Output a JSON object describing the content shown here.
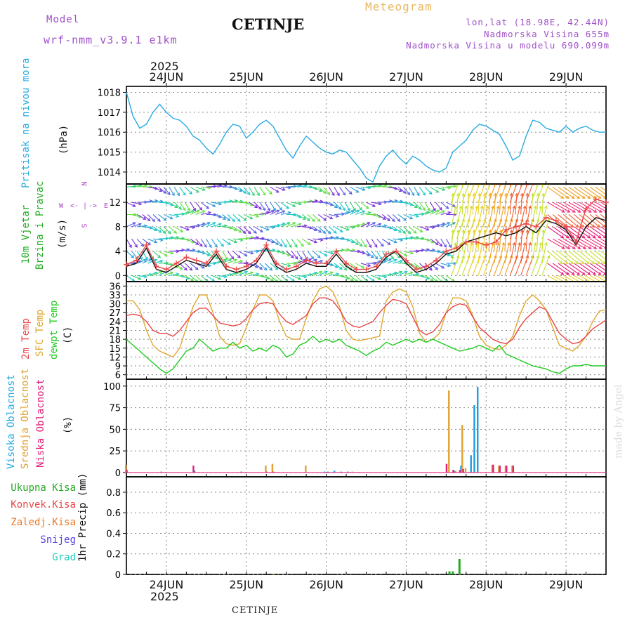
{
  "header": {
    "model_label": "Model",
    "model_name": "wrf-nmm_v3.9.1 e1km",
    "title": "CETINJE",
    "meteogram": "Meteogram",
    "lonlat": "lon,lat (18.98E, 42.44N)",
    "altitude": "Nadmorska Visina 655m",
    "altitude_model": "Nadmorska Visina u modelu 690.099m",
    "footer_station": "CETINJE",
    "watermark": "made by Angel"
  },
  "colors": {
    "pressure": "#29abe2",
    "temp2m": "#e84848",
    "sfc_temp": "#e0a830",
    "dewpt": "#22cc22",
    "cloud_high": "#1e9be0",
    "cloud_mid": "#e0a030",
    "cloud_low": "#e0207a",
    "rain_total": "#22aa22",
    "rain_conv": "#e84848",
    "freezing": "#ee7722",
    "snow": "#5544dd",
    "hail": "#22ccbb",
    "wind_label": "#22aa22",
    "wind_compass": "#b048c8",
    "header_violet": "#a050c8",
    "header_gold": "#e8b860"
  },
  "time_axis": {
    "year": "2025",
    "days": [
      "24JUN",
      "25JUN",
      "26JUN",
      "27JUN",
      "28JUN",
      "29JUN"
    ],
    "start_hour": 12,
    "total_hours": 144
  },
  "panels": {
    "pressure": {
      "label": "Pritisak na nivou mora",
      "unit": "(hPa)"
    },
    "wind": {
      "label1": "10m Vjetar",
      "label2": "Brzina i Pravac",
      "unit": "(m/s)",
      "compass_n": "N",
      "compass_w": "W",
      "compass_e": "E",
      "compass_s": "S",
      "arrow_left": "<-",
      "arrow_right": "->"
    },
    "temp": {
      "label1": "2m Temp",
      "label2": "SFC Temp",
      "label3": "dewpt Temp",
      "unit": "(C)"
    },
    "cloud": {
      "label1": "Visoka Oblacnost",
      "label2": "Srednja Oblacnost",
      "label3": "Niska Oblacnost",
      "unit": "(%)"
    },
    "precip": {
      "unit": "1hr Precip (mm)",
      "legend": [
        "Ukupna Kisa",
        "Konvek.Kisa",
        "Zaledj.Kisa",
        "Snijeg",
        "Grad"
      ]
    }
  },
  "chart_data": [
    {
      "type": "line",
      "name": "pressure",
      "ylim": [
        1013.4,
        1018.3
      ],
      "yticks": [
        1014,
        1015,
        1016,
        1017,
        1018
      ],
      "x_hours": [
        0,
        2,
        4,
        6,
        8,
        10,
        12,
        14,
        16,
        18,
        20,
        22,
        24,
        26,
        28,
        30,
        32,
        34,
        36,
        38,
        40,
        42,
        44,
        46,
        48,
        50,
        52,
        54,
        56,
        58,
        60,
        62,
        64,
        66,
        68,
        70,
        72,
        74,
        76,
        78,
        80,
        82,
        84,
        86,
        88,
        90,
        92,
        94,
        96,
        98,
        100,
        102,
        104,
        106,
        108,
        110,
        112,
        114,
        116,
        118,
        120,
        122,
        124,
        126,
        128,
        130,
        132,
        134,
        136,
        138,
        140,
        142,
        144
      ],
      "series": [
        {
          "values": [
            1018.0,
            1016.8,
            1016.2,
            1016.4,
            1017.0,
            1017.4,
            1017.0,
            1016.7,
            1016.6,
            1016.3,
            1015.8,
            1015.6,
            1015.2,
            1014.9,
            1015.4,
            1016.0,
            1016.4,
            1016.3,
            1015.7,
            1016.0,
            1016.4,
            1016.6,
            1016.3,
            1015.7,
            1015.1,
            1014.7,
            1015.3,
            1015.8,
            1015.5,
            1015.2,
            1015.0,
            1014.9,
            1015.1,
            1015.0,
            1014.6,
            1014.2,
            1013.7,
            1013.5,
            1014.3,
            1014.8,
            1015.1,
            1014.7,
            1014.4,
            1014.8,
            1014.6,
            1014.3,
            1014.1,
            1014.0,
            1014.2,
            1015.0,
            1015.3,
            1015.6,
            1016.1,
            1016.4,
            1016.3,
            1016.1,
            1015.9,
            1015.3,
            1014.6,
            1014.8,
            1015.8,
            1016.6,
            1016.5,
            1016.2,
            1016.1,
            1016.0,
            1016.3,
            1016.0,
            1016.2,
            1016.3,
            1016.1,
            1016.0,
            1016.0
          ]
        }
      ]
    },
    {
      "type": "line",
      "name": "wind",
      "ylim": [
        -1,
        15
      ],
      "yticks": [
        0,
        4,
        8,
        12
      ],
      "x_hours": [
        0,
        3,
        6,
        9,
        12,
        15,
        18,
        21,
        24,
        27,
        30,
        33,
        36,
        39,
        42,
        45,
        48,
        51,
        54,
        57,
        60,
        63,
        66,
        69,
        72,
        75,
        78,
        81,
        84,
        87,
        90,
        93,
        96,
        99,
        102,
        105,
        108,
        111,
        114,
        117,
        120,
        123,
        126,
        129,
        132,
        135,
        138,
        141,
        144
      ],
      "series": [
        {
          "name": "speed",
          "values": [
            1.5,
            2.0,
            4.5,
            1.0,
            0.5,
            1.5,
            2.5,
            2.0,
            1.5,
            3.5,
            1.0,
            0.5,
            1.0,
            2.0,
            4.5,
            1.5,
            0.5,
            1.0,
            2.0,
            1.5,
            1.5,
            3.5,
            1.5,
            0.5,
            0.5,
            1.0,
            3.0,
            4.0,
            2.0,
            0.5,
            1.0,
            2.0,
            3.5,
            4.0,
            5.5,
            6.0,
            6.5,
            7.0,
            6.5,
            7.0,
            8.0,
            7.0,
            9.0,
            8.5,
            7.5,
            5.0,
            8.0,
            9.5,
            9.0
          ]
        },
        {
          "name": "gust",
          "values": [
            1.8,
            2.5,
            5.0,
            1.5,
            1.0,
            2.0,
            3.0,
            2.5,
            2.0,
            4.0,
            1.5,
            1.0,
            1.5,
            2.5,
            5.0,
            2.0,
            1.0,
            1.5,
            2.5,
            2.0,
            2.0,
            4.0,
            2.0,
            1.0,
            1.0,
            1.5,
            3.5,
            4.0,
            2.5,
            1.0,
            1.5,
            2.5,
            4.0,
            4.5,
            5.5,
            5.5,
            5.0,
            5.5,
            7.5,
            8.0,
            8.5,
            8.0,
            9.5,
            9.0,
            8.0,
            5.5,
            11.0,
            12.5,
            12.0
          ]
        }
      ]
    },
    {
      "type": "line",
      "name": "temperature",
      "ylim": [
        4.5,
        37.5
      ],
      "yticks": [
        6,
        9,
        12,
        15,
        18,
        21,
        24,
        27,
        30,
        33,
        36
      ],
      "x_hours": [
        0,
        2,
        4,
        6,
        8,
        10,
        12,
        14,
        16,
        18,
        20,
        22,
        24,
        26,
        28,
        30,
        32,
        34,
        36,
        38,
        40,
        42,
        44,
        46,
        48,
        50,
        52,
        54,
        56,
        58,
        60,
        62,
        64,
        66,
        68,
        70,
        72,
        74,
        76,
        78,
        80,
        82,
        84,
        86,
        88,
        90,
        92,
        94,
        96,
        98,
        100,
        102,
        104,
        106,
        108,
        110,
        112,
        114,
        116,
        118,
        120,
        122,
        124,
        126,
        128,
        130,
        132,
        134,
        136,
        138,
        140,
        142,
        144
      ],
      "series": [
        {
          "name": "2m Temp",
          "values": [
            26,
            26.5,
            26,
            24,
            21,
            20,
            20,
            19,
            21,
            24,
            27,
            28.5,
            28.5,
            26,
            23.5,
            23,
            22.5,
            23,
            25,
            28,
            30,
            30.5,
            30,
            26.5,
            24,
            23,
            24.5,
            26,
            30,
            32,
            32,
            31,
            28,
            24,
            22.5,
            22,
            23,
            24,
            27,
            29.5,
            31.5,
            31,
            30,
            25.5,
            21,
            19.5,
            20.5,
            23,
            27,
            29,
            30,
            29.5,
            25.5,
            22,
            20,
            18,
            17,
            16.5,
            18,
            22,
            25,
            27,
            29,
            28,
            24,
            20,
            18,
            16.5,
            17,
            19,
            21.5,
            23,
            24.5
          ]
        },
        {
          "name": "SFC Temp",
          "values": [
            31,
            31,
            28,
            21,
            16,
            14,
            13,
            12,
            15,
            22,
            29,
            33,
            33,
            27,
            19,
            16.5,
            16,
            16.5,
            22,
            28,
            33,
            33,
            31,
            24,
            19,
            18,
            18,
            25,
            31,
            35,
            36,
            34,
            29,
            21,
            18,
            17.5,
            18,
            18.5,
            19,
            31,
            34,
            35,
            34,
            29,
            20,
            17,
            18,
            20,
            27,
            32,
            32,
            31,
            26,
            19,
            16,
            15,
            14.5,
            16,
            19,
            26,
            31,
            33,
            31,
            28,
            22,
            16,
            15,
            14,
            16,
            19,
            24,
            27.5,
            28
          ]
        },
        {
          "name": "dewpt Temp",
          "values": [
            18,
            16,
            14,
            12,
            10,
            8,
            6.5,
            8,
            11,
            14,
            15,
            18,
            16,
            14,
            15,
            15,
            17,
            15,
            16,
            14,
            15,
            14,
            16,
            15,
            12,
            13,
            16,
            17,
            19,
            17,
            18,
            17,
            18,
            16,
            15,
            14,
            12.5,
            14,
            15,
            17,
            16,
            17,
            18,
            17,
            18,
            17,
            18,
            17,
            16,
            15,
            14,
            14.5,
            15,
            16,
            15,
            14,
            16,
            13,
            12,
            11,
            10,
            9,
            8.5,
            8,
            7,
            6.5,
            8,
            9,
            9,
            9.5,
            9,
            9,
            9
          ]
        }
      ]
    },
    {
      "type": "bar",
      "name": "cloud",
      "ylim": [
        -5,
        108
      ],
      "yticks": [
        0,
        25,
        50,
        75,
        100
      ],
      "series": [
        {
          "name": "Visoka Oblacnost",
          "x_hours": [
            10,
            20,
            34,
            59,
            60,
            62,
            64,
            66,
            98,
            100,
            103,
            104,
            105
          ],
          "values": [
            1,
            2,
            1,
            1,
            1,
            2,
            1,
            1,
            2,
            8,
            20,
            78,
            99
          ]
        },
        {
          "name": "Srednja Oblacnost",
          "x_hours": [
            0,
            42,
            44,
            54,
            68,
            97,
            99,
            101,
            102,
            110,
            112,
            114,
            116
          ],
          "values": [
            9,
            8,
            10,
            8,
            1,
            95,
            2,
            55,
            5,
            9,
            8,
            8,
            8
          ]
        },
        {
          "name": "Niska Oblacnost",
          "x_hours": [
            0,
            20,
            42,
            44,
            96,
            98,
            100,
            101,
            110,
            112,
            114,
            116
          ],
          "values": [
            3,
            8,
            1,
            1,
            10,
            3,
            3,
            4,
            9,
            8,
            8,
            8
          ]
        }
      ]
    },
    {
      "type": "bar",
      "name": "precip",
      "ylim": [
        0,
        0.95
      ],
      "yticks": [
        0,
        0.2,
        0.4,
        0.6,
        0.8
      ],
      "series": [
        {
          "name": "Ukupna Kisa",
          "x_hours": [
            44,
            97,
            98,
            100
          ],
          "values": [
            0.005,
            0.03,
            0.03,
            0.15
          ]
        },
        {
          "name": "Konvek.Kisa",
          "x_hours": [
            44
          ],
          "values": [
            0.005
          ]
        }
      ]
    }
  ]
}
